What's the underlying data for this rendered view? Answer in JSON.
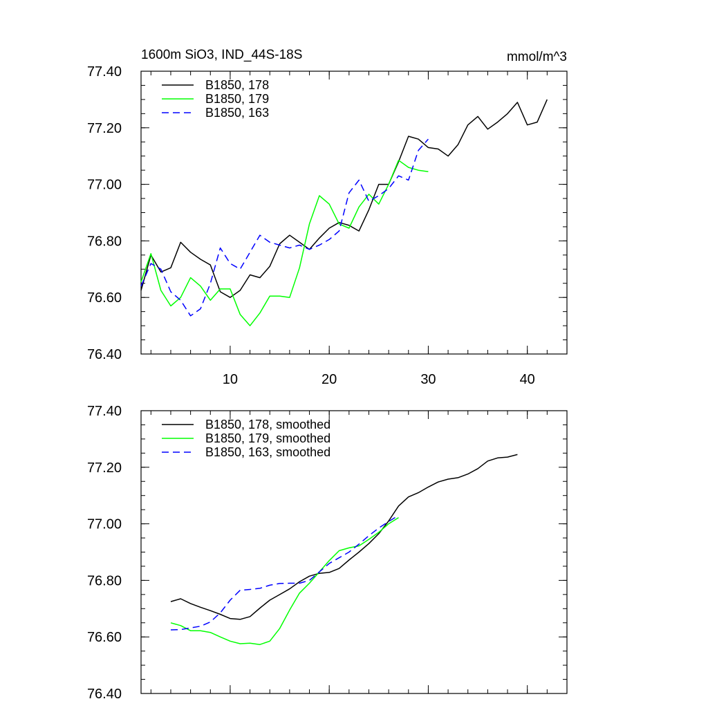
{
  "chart_data": [
    {
      "type": "line",
      "title": "1600m SiO3, IND_44S-18S",
      "units": "mmol/m^3",
      "xlim": [
        1,
        44
      ],
      "ylim": [
        76.4,
        77.4
      ],
      "xticks": [
        10,
        20,
        30,
        40
      ],
      "xtick_labels": [
        "10",
        "20",
        "30",
        "40"
      ],
      "yticks": [
        76.4,
        76.6,
        76.8,
        77.0,
        77.2,
        77.4
      ],
      "ytick_labels": [
        "76.40",
        "76.60",
        "76.80",
        "77.00",
        "77.20",
        "77.40"
      ],
      "legend_position": "top-left",
      "series": [
        {
          "name": "B1850, 178",
          "color": "#000000",
          "dash": "solid",
          "x": [
            1,
            2,
            3,
            4,
            5,
            6,
            7,
            8,
            9,
            10,
            11,
            12,
            13,
            14,
            15,
            16,
            17,
            18,
            19,
            20,
            21,
            22,
            23,
            24,
            25,
            26,
            27,
            28,
            29,
            30,
            31,
            32,
            33,
            34,
            35,
            36,
            37,
            38,
            39,
            40,
            41,
            42
          ],
          "values": [
            76.625,
            76.75,
            76.69,
            76.705,
            76.795,
            76.76,
            76.735,
            76.715,
            76.62,
            76.6,
            76.625,
            76.68,
            76.67,
            76.71,
            76.79,
            76.82,
            76.795,
            76.77,
            76.81,
            76.845,
            76.865,
            76.855,
            76.835,
            76.91,
            77.0,
            77.0,
            77.08,
            77.17,
            77.16,
            77.13,
            77.125,
            77.1,
            77.14,
            77.21,
            77.24,
            77.195,
            77.22,
            77.25,
            77.29,
            77.21,
            77.22,
            77.3
          ]
        },
        {
          "name": "B1850, 179",
          "color": "#00ff00",
          "dash": "solid",
          "x": [
            1,
            2,
            3,
            4,
            5,
            6,
            7,
            8,
            9,
            10,
            11,
            12,
            13,
            14,
            15,
            16,
            17,
            18,
            19,
            20,
            21,
            22,
            23,
            24,
            25,
            26,
            27,
            28,
            29,
            30
          ],
          "values": [
            76.655,
            76.755,
            76.625,
            76.57,
            76.6,
            76.67,
            76.64,
            76.59,
            76.63,
            76.63,
            76.54,
            76.5,
            76.545,
            76.605,
            76.605,
            76.6,
            76.705,
            76.86,
            76.96,
            76.93,
            76.86,
            76.845,
            76.92,
            76.965,
            76.93,
            77.0,
            77.085,
            77.06,
            77.05,
            77.045
          ]
        },
        {
          "name": "B1850, 163",
          "color": "#0000ff",
          "dash": "dashed",
          "x": [
            1,
            2,
            3,
            4,
            5,
            6,
            7,
            8,
            9,
            10,
            11,
            12,
            13,
            14,
            15,
            16,
            17,
            18,
            19,
            20,
            21,
            22,
            23,
            24,
            25,
            26,
            27,
            28,
            29,
            30
          ],
          "values": [
            76.64,
            76.72,
            76.7,
            76.62,
            76.59,
            76.535,
            76.56,
            76.65,
            76.775,
            76.72,
            76.7,
            76.76,
            76.82,
            76.795,
            76.785,
            76.775,
            76.785,
            76.77,
            76.785,
            76.805,
            76.835,
            76.97,
            77.015,
            76.94,
            76.96,
            76.985,
            77.03,
            77.015,
            77.12,
            77.16
          ]
        }
      ]
    },
    {
      "type": "line",
      "title": "",
      "xlim": [
        1,
        44
      ],
      "ylim": [
        76.4,
        77.4
      ],
      "xticks": [
        10,
        20,
        30,
        40
      ],
      "xtick_labels": [
        "",
        "",
        "",
        ""
      ],
      "yticks": [
        76.4,
        76.6,
        76.8,
        77.0,
        77.2,
        77.4
      ],
      "ytick_labels": [
        "76.40",
        "76.60",
        "76.80",
        "77.00",
        "77.20",
        "77.40"
      ],
      "legend_position": "top-left",
      "series": [
        {
          "name": "B1850, 178, smoothed",
          "color": "#000000",
          "dash": "solid",
          "x": [
            4,
            5,
            6,
            7,
            8,
            9,
            10,
            11,
            12,
            13,
            14,
            15,
            16,
            17,
            18,
            19,
            20,
            21,
            22,
            23,
            24,
            25,
            26,
            27,
            28,
            29,
            30,
            31,
            32,
            33,
            34,
            35,
            36,
            37,
            38,
            39
          ],
          "values": [
            76.725,
            76.735,
            76.718,
            76.705,
            76.693,
            76.68,
            76.665,
            76.662,
            76.672,
            76.702,
            76.73,
            76.75,
            76.77,
            76.795,
            76.815,
            76.825,
            76.828,
            76.842,
            76.872,
            76.9,
            76.93,
            76.965,
            77.01,
            77.063,
            77.095,
            77.11,
            77.13,
            77.148,
            77.158,
            77.163,
            77.176,
            77.195,
            77.222,
            77.233,
            77.236,
            77.245
          ]
        },
        {
          "name": "B1850, 179, smoothed",
          "color": "#00ff00",
          "dash": "solid",
          "x": [
            4,
            5,
            6,
            7,
            8,
            9,
            10,
            11,
            12,
            13,
            14,
            15,
            16,
            17,
            18,
            19,
            20,
            21,
            22,
            23,
            24,
            25,
            26,
            27
          ],
          "values": [
            76.65,
            76.64,
            76.622,
            76.622,
            76.616,
            76.6,
            76.585,
            76.576,
            76.578,
            76.573,
            76.585,
            76.63,
            76.695,
            76.755,
            76.79,
            76.83,
            76.87,
            76.905,
            76.915,
            76.922,
            76.945,
            76.97,
            77.0,
            77.022
          ]
        },
        {
          "name": "B1850, 163, smoothed",
          "color": "#0000ff",
          "dash": "dashed",
          "x": [
            4,
            5,
            6,
            7,
            8,
            9,
            10,
            11,
            12,
            13,
            14,
            15,
            16,
            17,
            18,
            19,
            20,
            21,
            22,
            23,
            24,
            25,
            26,
            27
          ],
          "values": [
            76.625,
            76.626,
            76.632,
            76.638,
            76.653,
            76.685,
            76.73,
            76.765,
            76.768,
            76.772,
            76.783,
            76.789,
            76.79,
            76.79,
            76.8,
            76.83,
            76.86,
            76.88,
            76.9,
            76.928,
            76.958,
            76.985,
            77.008,
            77.03
          ]
        }
      ]
    }
  ]
}
